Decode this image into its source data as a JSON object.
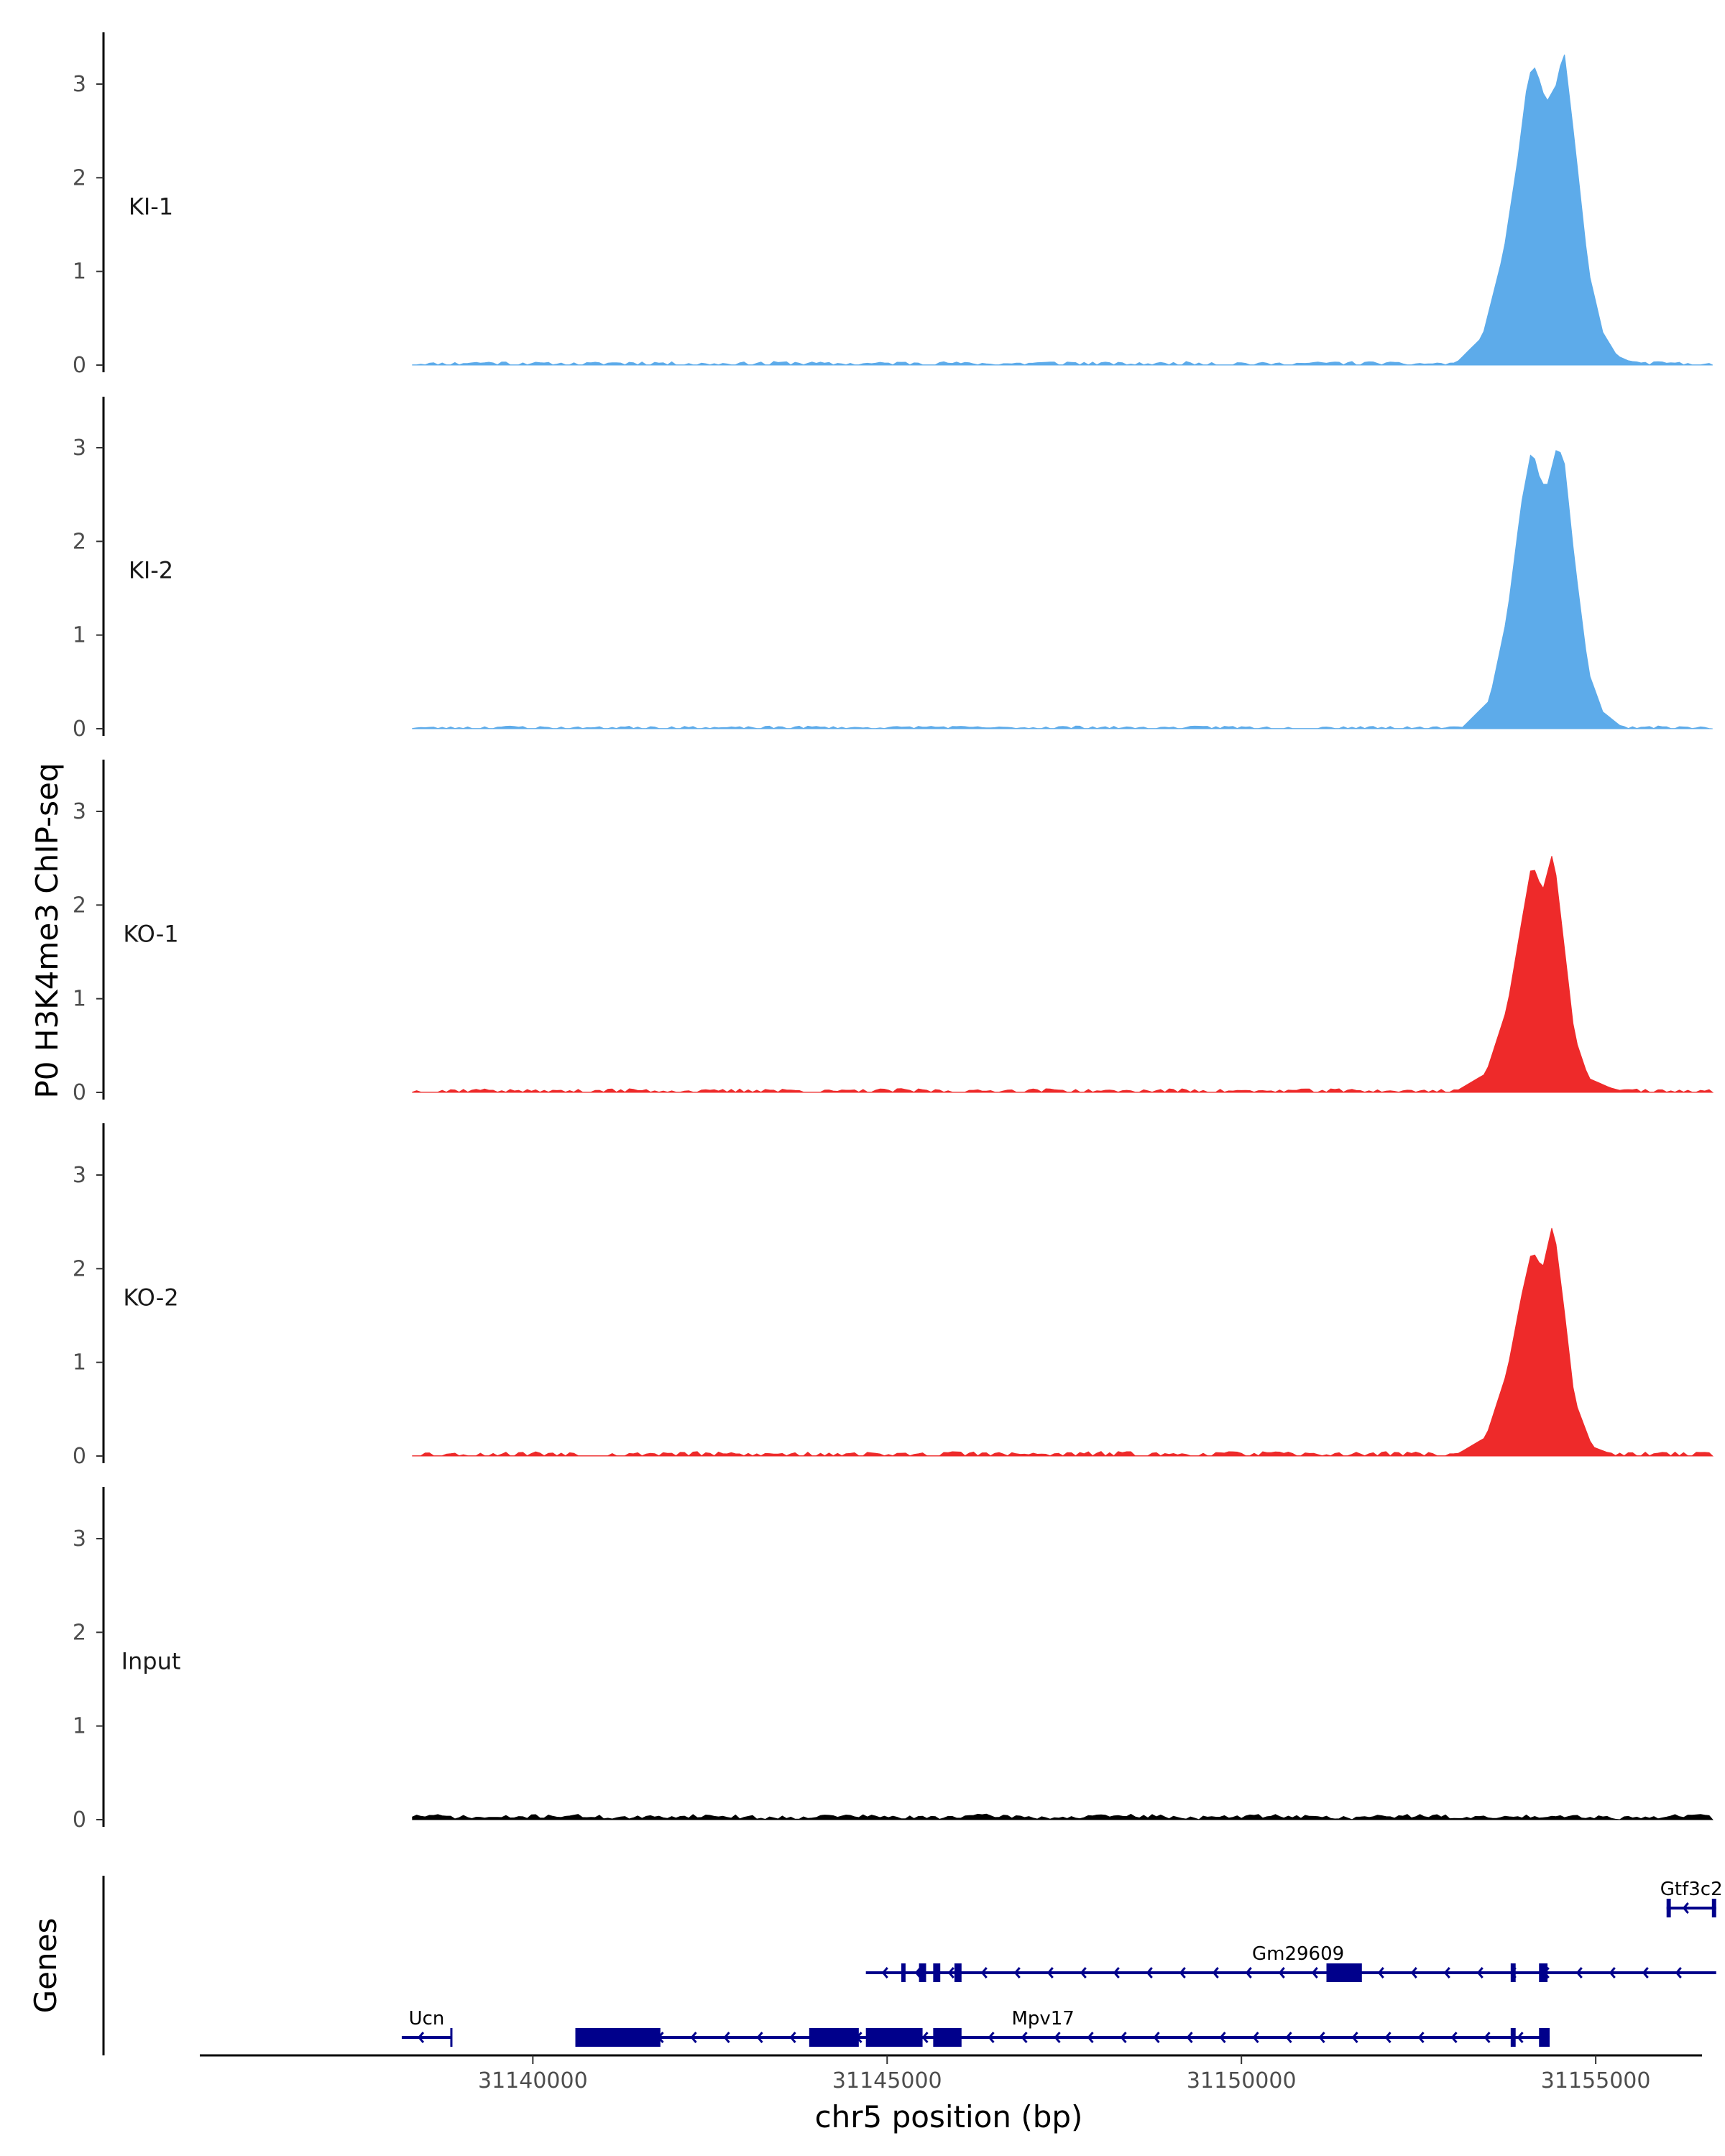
{
  "chart_data": {
    "type": "area",
    "title": "",
    "ylabel": "P0 H3K4me3 ChIP-seq",
    "xlabel": "chr5 position (bp)",
    "ylim": [
      0,
      3.55
    ],
    "xlim": [
      31135300,
      31156500
    ],
    "x_ticks": [
      31140000,
      31145000,
      31150000,
      31155000
    ],
    "x_tick_labels": [
      "31140000",
      "31145000",
      "31150000",
      "31155000"
    ],
    "y_ticks": [
      0,
      1,
      2,
      3
    ],
    "y_tick_labels": [
      "0",
      "1",
      "2",
      "3"
    ],
    "data_start": 31138300,
    "data_end": 31156650,
    "tracks": [
      {
        "name": "KI-1",
        "color": "#5DABEA",
        "peak": [
          [
            31153000,
            0.0
          ],
          [
            31153400,
            0.3
          ],
          [
            31153700,
            1.2
          ],
          [
            31153900,
            2.2
          ],
          [
            31154050,
            3.1
          ],
          [
            31154150,
            3.18
          ],
          [
            31154300,
            2.8
          ],
          [
            31154450,
            3.0
          ],
          [
            31154550,
            3.38
          ],
          [
            31154700,
            2.4
          ],
          [
            31154900,
            1.0
          ],
          [
            31155100,
            0.35
          ],
          [
            31155300,
            0.1
          ],
          [
            31155600,
            0.0
          ]
        ],
        "noise_amp": 0.04,
        "seed": 11
      },
      {
        "name": "KI-2",
        "color": "#5DABEA",
        "peak": [
          [
            31153100,
            0.0
          ],
          [
            31153500,
            0.3
          ],
          [
            31153750,
            1.2
          ],
          [
            31153950,
            2.4
          ],
          [
            31154100,
            3.0
          ],
          [
            31154200,
            2.7
          ],
          [
            31154300,
            2.55
          ],
          [
            31154450,
            3.0
          ],
          [
            31154550,
            2.9
          ],
          [
            31154700,
            1.8
          ],
          [
            31154900,
            0.6
          ],
          [
            31155100,
            0.18
          ],
          [
            31155400,
            0.0
          ]
        ],
        "noise_amp": 0.03,
        "seed": 23
      },
      {
        "name": "KO-1",
        "color": "#EE2A2A",
        "peak": [
          [
            31153000,
            0.0
          ],
          [
            31153450,
            0.2
          ],
          [
            31153750,
            0.9
          ],
          [
            31153950,
            1.8
          ],
          [
            31154100,
            2.45
          ],
          [
            31154250,
            2.15
          ],
          [
            31154400,
            2.58
          ],
          [
            31154550,
            1.6
          ],
          [
            31154700,
            0.6
          ],
          [
            31154900,
            0.15
          ],
          [
            31155200,
            0.05
          ],
          [
            31155450,
            0.0
          ]
        ],
        "noise_amp": 0.04,
        "seed": 37
      },
      {
        "name": "KO-2",
        "color": "#EE2A2A",
        "peak": [
          [
            31153000,
            0.0
          ],
          [
            31153450,
            0.2
          ],
          [
            31153750,
            0.9
          ],
          [
            31153950,
            1.7
          ],
          [
            31154100,
            2.2
          ],
          [
            31154250,
            2.0
          ],
          [
            31154400,
            2.5
          ],
          [
            31154550,
            1.6
          ],
          [
            31154700,
            0.6
          ],
          [
            31154950,
            0.1
          ],
          [
            31155300,
            0.0
          ]
        ],
        "noise_amp": 0.05,
        "seed": 53
      },
      {
        "name": "Input",
        "color": "#000000",
        "peak": [],
        "noise_amp": 0.06,
        "seed": 71
      }
    ],
    "genes_panel": {
      "label": "Genes",
      "genes": [
        {
          "name": "Gtf3c2",
          "row": 0,
          "start": 31156000,
          "end": 31156700,
          "strand": "-",
          "exons": [
            [
              31156000,
              31156060
            ],
            [
              31156640,
              31156700
            ]
          ]
        },
        {
          "name": "Gm29609",
          "row": 1,
          "start": 31144700,
          "end": 31156700,
          "strand": "-",
          "exons": [
            [
              31145200,
              31145260
            ],
            [
              31145450,
              31145550
            ],
            [
              31145650,
              31145750
            ],
            [
              31145950,
              31146050
            ],
            [
              31151200,
              31151700
            ],
            [
              31153800,
              31153870
            ],
            [
              31154200,
              31154320
            ]
          ]
        },
        {
          "name": "Ucn",
          "row": 2,
          "start": 31138150,
          "end": 31138850,
          "strand": "-",
          "exons": []
        },
        {
          "name": "Mpv17",
          "row": 2,
          "start": 31140600,
          "end": 31154350,
          "strand": "-",
          "exons": [
            [
              31140600,
              31141800
            ],
            [
              31143900,
              31144600
            ],
            [
              31144700,
              31145500
            ],
            [
              31145650,
              31146050
            ],
            [
              31153800,
              31153870
            ],
            [
              31154200,
              31154350
            ]
          ]
        }
      ]
    }
  }
}
